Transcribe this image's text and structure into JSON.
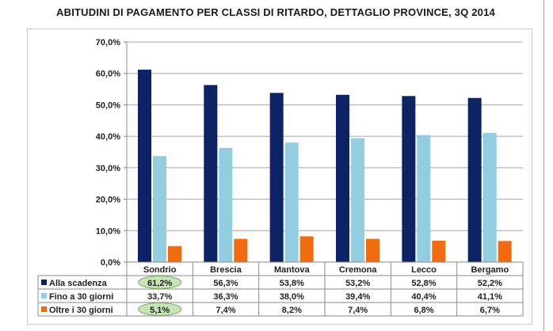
{
  "page": {
    "title": "ABITUDINI DI PAGAMENTO PER CLASSI DI RITARDO, DETTAGLIO PROVINCE, 3Q 2014"
  },
  "chart_data": {
    "type": "bar",
    "title": "ABITUDINI DI PAGAMENTO PER CLASSI DI RITARDO, DETTAGLIO PROVINCE, 3Q 2014",
    "xlabel": "",
    "ylabel": "",
    "categories": [
      "Sondrio",
      "Brescia",
      "Mantova",
      "Cremona",
      "Lecco",
      "Bergamo"
    ],
    "series": [
      {
        "name": "Alla scadenza",
        "color": "#0d2366",
        "values": [
          61.2,
          56.3,
          53.8,
          53.2,
          52.8,
          52.2
        ],
        "labels": [
          "61,2%",
          "56,3%",
          "53,8%",
          "53,2%",
          "52,8%",
          "52,2%"
        ]
      },
      {
        "name": "Fino a 30 giorni",
        "color": "#92cde0",
        "values": [
          33.7,
          36.3,
          38.0,
          39.4,
          40.4,
          41.1
        ],
        "labels": [
          "33,7%",
          "36,3%",
          "38,0%",
          "39,4%",
          "40,4%",
          "41,1%"
        ]
      },
      {
        "name": "Oltre i 30 giorni",
        "color": "#f26b0f",
        "values": [
          5.1,
          7.4,
          8.2,
          7.4,
          6.8,
          6.7
        ],
        "labels": [
          "5,1%",
          "7,4%",
          "8,2%",
          "7,4%",
          "6,8%",
          "6,7%"
        ]
      }
    ],
    "ylim": [
      0,
      70
    ],
    "yticks": [
      0,
      10,
      20,
      30,
      40,
      50,
      60,
      70
    ],
    "ytick_labels": [
      "0,0%",
      "10,0%",
      "20,0%",
      "30,0%",
      "40,0%",
      "50,0%",
      "60,0%",
      "70,0%"
    ],
    "grid": true,
    "legend": "data-table",
    "highlighted_cells": [
      {
        "series": "Alla scadenza",
        "category": "Sondrio"
      },
      {
        "series": "Oltre i 30 giorni",
        "category": "Sondrio"
      }
    ],
    "highlight_color": "#c6e5b4"
  }
}
